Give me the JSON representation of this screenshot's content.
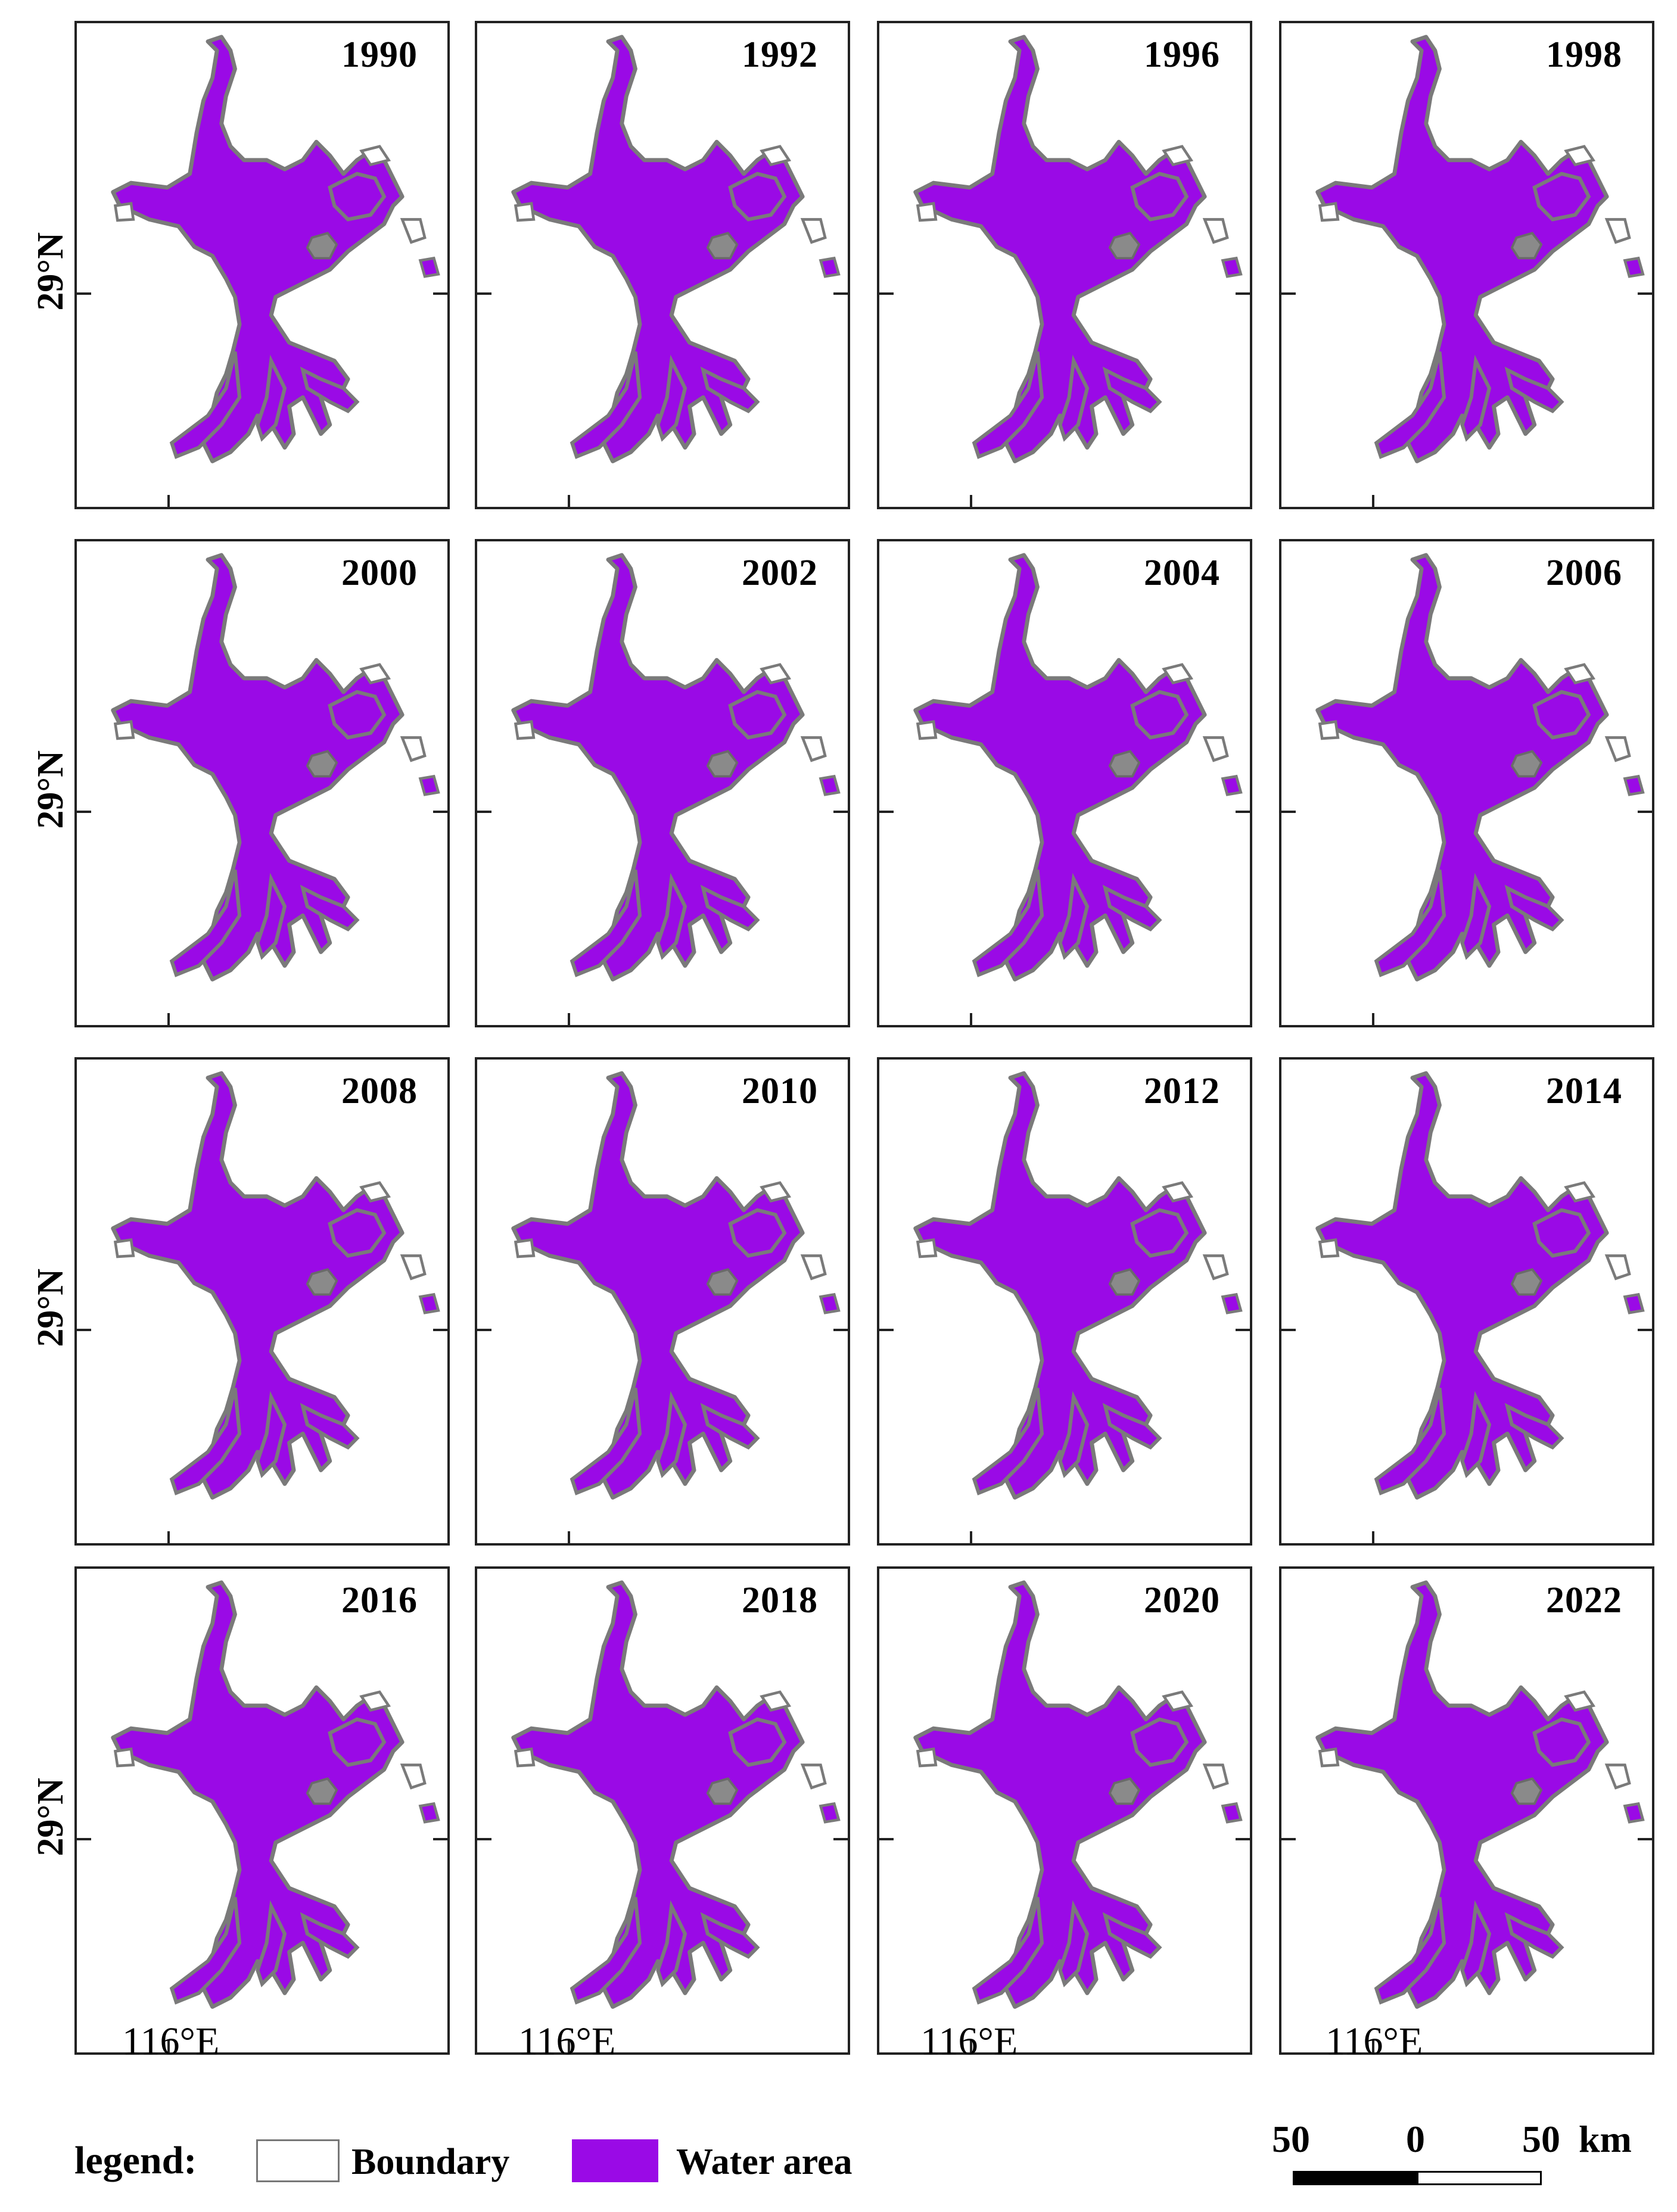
{
  "panels": [
    {
      "year": "1990"
    },
    {
      "year": "1992"
    },
    {
      "year": "1996"
    },
    {
      "year": "1998"
    },
    {
      "year": "2000"
    },
    {
      "year": "2002"
    },
    {
      "year": "2004"
    },
    {
      "year": "2006"
    },
    {
      "year": "2008"
    },
    {
      "year": "2010"
    },
    {
      "year": "2012"
    },
    {
      "year": "2014"
    },
    {
      "year": "2016"
    },
    {
      "year": "2018"
    },
    {
      "year": "2020"
    },
    {
      "year": "2022"
    }
  ],
  "latitude_label": "29°N",
  "longitude_label": "116°E",
  "legend": {
    "title": "legend:",
    "items": [
      {
        "label": "Boundary",
        "color": "#ffffff"
      },
      {
        "label": "Water area",
        "color": "#9a0ae6"
      }
    ]
  },
  "scale_bar": {
    "left": "50",
    "middle": "0",
    "right": "50",
    "unit": "km"
  },
  "colors": {
    "water": "#9a0ae6",
    "boundary": "#7a7a7a"
  }
}
